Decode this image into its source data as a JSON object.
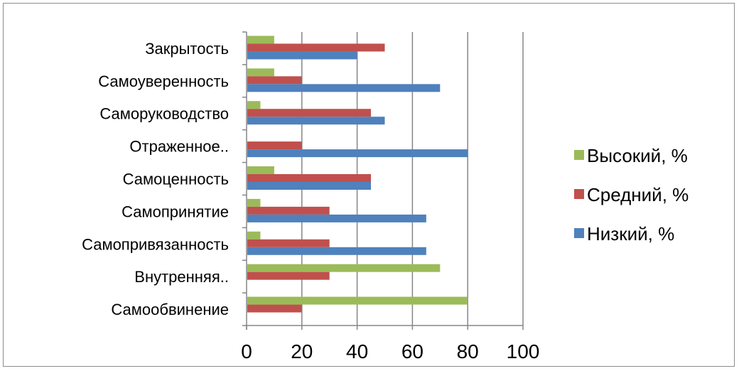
{
  "chart_data": {
    "type": "bar",
    "orientation": "horizontal",
    "title": "",
    "xlabel": "",
    "ylabel": "",
    "xlim": [
      0,
      100
    ],
    "xticks": [
      0,
      20,
      40,
      60,
      80,
      100
    ],
    "grid": "vertical",
    "legend_position": "right",
    "categories": [
      "Самообвинение",
      "Внутренняя..",
      "Самопривязанность",
      "Самопринятие",
      "Самоценность",
      "Отраженное..",
      "Саморуководство",
      "Самоуверенность",
      "Закрытость"
    ],
    "series": [
      {
        "name": "Низкий, %",
        "color": "#4f81bd",
        "values": [
          0,
          0,
          65,
          65,
          45,
          80,
          50,
          70,
          40
        ]
      },
      {
        "name": "Средний, %",
        "color": "#c0504d",
        "values": [
          20,
          30,
          30,
          30,
          45,
          20,
          45,
          20,
          50
        ]
      },
      {
        "name": "Высокий, %",
        "color": "#9bbb59",
        "values": [
          80,
          70,
          5,
          5,
          10,
          0,
          5,
          10,
          10
        ]
      }
    ],
    "legend_order": [
      "Высокий, %",
      "Средний, %",
      "Низкий, %"
    ]
  }
}
